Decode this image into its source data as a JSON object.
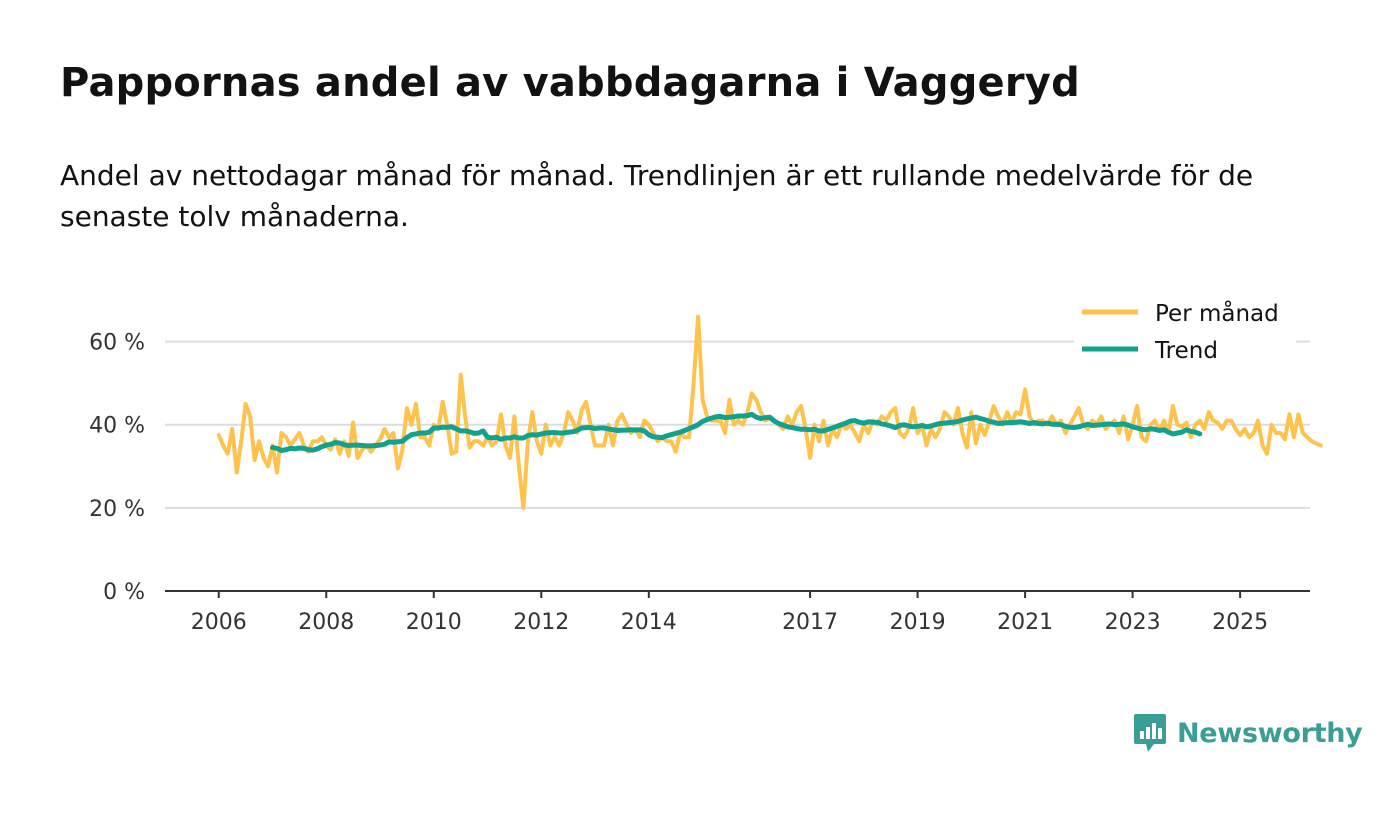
{
  "title": "Pappornas andel av vabbdagarna i Vaggeryd",
  "subtitle": "Andel av nettodagar månad för månad. Trendlinjen är ett rullande medelvärde för de senaste tolv månaderna.",
  "brand": {
    "name": "Newsworthy",
    "icon": "newsworthy-logo-icon"
  },
  "colors": {
    "monthly": "#ffc34d",
    "trend": "#12a08f",
    "grid": "#dddddd",
    "axis": "#333333",
    "brand": "#3a9e97"
  },
  "chart_data": {
    "type": "line",
    "title": "Pappornas andel av vabbdagarna i Vaggeryd",
    "xlabel": "",
    "ylabel": "",
    "ylim": [
      0,
      70
    ],
    "xlim": [
      2005.0,
      2026.3
    ],
    "y_ticks": [
      0,
      20,
      40,
      60
    ],
    "y_tick_labels": [
      "0 %",
      "20 %",
      "40 %",
      "60 %"
    ],
    "x_ticks": [
      2006,
      2008,
      2010,
      2012,
      2014,
      2017,
      2019,
      2021,
      2023,
      2025
    ],
    "x_tick_labels": [
      "2006",
      "2008",
      "2010",
      "2012",
      "2014",
      "2017",
      "2019",
      "2021",
      "2023",
      "2025"
    ],
    "legend_position": "top-right",
    "x_start": 2006.0,
    "x_step": 0.0833333,
    "series": [
      {
        "name": "Per månad",
        "color": "#ffc34d",
        "values": [
          37.5,
          35,
          33,
          39,
          28.5,
          36,
          45,
          42,
          31.5,
          36,
          32,
          30,
          35,
          28.5,
          38,
          37,
          35,
          36.5,
          38,
          35,
          33.5,
          36,
          36,
          37,
          35,
          34,
          36.5,
          33,
          36,
          32.5,
          40.5,
          32,
          34,
          35,
          33.5,
          35,
          36.5,
          39,
          37,
          38,
          29.5,
          34,
          44,
          40,
          45,
          37,
          37,
          35,
          40,
          39,
          45.5,
          40,
          33,
          33.5,
          52,
          42,
          34.5,
          36,
          36,
          35,
          37,
          35,
          36,
          42.5,
          35,
          32,
          42,
          30,
          20,
          36,
          43,
          36,
          33,
          40,
          35,
          37,
          35,
          38,
          43,
          41,
          38,
          43.5,
          45.5,
          40,
          35,
          35,
          35,
          40,
          35,
          41,
          42.5,
          40,
          38,
          39,
          37,
          41,
          40,
          38,
          36,
          37,
          36,
          36,
          33.5,
          38,
          37,
          37,
          50,
          66,
          46,
          42,
          41,
          41,
          41,
          38,
          46,
          40,
          41,
          40,
          43,
          47.5,
          46,
          43,
          41,
          41.5,
          41,
          40,
          39,
          42,
          40,
          43,
          44.5,
          39,
          32,
          40,
          36,
          41,
          35,
          39,
          37,
          40,
          39,
          40,
          38,
          36,
          40,
          38,
          41,
          40,
          42,
          41,
          43,
          44,
          38,
          37,
          39,
          44,
          38,
          40,
          35,
          39,
          37,
          39,
          43,
          42,
          40,
          44,
          38,
          34.5,
          43,
          35.5,
          40,
          37.5,
          41,
          44.5,
          42,
          40,
          43,
          40.5,
          43,
          42.5,
          48.5,
          42,
          40,
          41,
          41,
          40,
          42,
          40,
          41,
          38,
          40,
          42,
          44,
          40,
          39,
          41,
          40,
          42,
          39,
          40,
          41,
          38,
          42,
          36.5,
          40,
          44.5,
          37,
          36,
          40,
          41,
          38.5,
          41,
          38,
          44.5,
          40,
          39.5,
          40.5,
          37,
          40,
          41,
          39,
          43,
          41,
          40.5,
          39,
          41,
          41,
          39,
          37.5,
          39,
          37,
          38,
          41,
          35,
          33,
          40,
          38,
          38,
          36.5,
          42.5,
          37,
          42.5,
          38,
          37,
          36,
          35.5,
          35
        ]
      },
      {
        "name": "Trend",
        "color": "#12a08f",
        "start_index": 12,
        "values": [
          34.5,
          34.3,
          33.8,
          34.0,
          34.3,
          34.2,
          34.4,
          34.3,
          34.0,
          33.9,
          34.2,
          34.7,
          35.1,
          35.3,
          35.7,
          35.6,
          35.2,
          35.0,
          35.1,
          35.1,
          35.0,
          34.9,
          34.9,
          35.0,
          35.1,
          35.3,
          35.9,
          35.8,
          35.9,
          36.0,
          36.9,
          37.6,
          37.8,
          38.0,
          38.0,
          38.2,
          39.2,
          39.2,
          39.4,
          39.4,
          39.5,
          39.0,
          38.5,
          38.5,
          38.3,
          37.9,
          38.0,
          38.5,
          37.0,
          36.8,
          37.0,
          36.5,
          36.8,
          36.8,
          37.1,
          36.8,
          36.8,
          37.4,
          37.6,
          37.5,
          37.8,
          38.0,
          38.1,
          38.1,
          38.0,
          38.0,
          38.2,
          38.3,
          38.6,
          39.2,
          39.3,
          39.3,
          39.1,
          39.2,
          39.2,
          39.0,
          38.8,
          38.6,
          38.7,
          38.7,
          38.8,
          38.7,
          38.8,
          38.5,
          37.6,
          37.1,
          37.0,
          36.9,
          37.3,
          37.6,
          37.9,
          38.2,
          38.6,
          39.1,
          39.5,
          40.0,
          40.8,
          41.2,
          41.6,
          41.9,
          42.0,
          41.7,
          41.8,
          41.9,
          42.1,
          42.1,
          42.2,
          42.5,
          41.8,
          41.5,
          41.7,
          41.8,
          40.9,
          40.3,
          39.9,
          39.5,
          39.3,
          39.1,
          38.9,
          38.9,
          38.8,
          38.9,
          38.5,
          38.5,
          38.9,
          39.2,
          39.6,
          40.0,
          40.4,
          40.9,
          41.0,
          40.6,
          40.4,
          40.7,
          40.6,
          40.6,
          40.2,
          40.0,
          39.7,
          39.3,
          39.8,
          40.0,
          39.7,
          39.5,
          39.6,
          39.8,
          39.5,
          39.7,
          40.0,
          40.3,
          40.4,
          40.5,
          40.6,
          40.8,
          41.1,
          41.4,
          41.6,
          41.8,
          41.5,
          41.2,
          40.8,
          40.6,
          40.3,
          40.4,
          40.5,
          40.5,
          40.6,
          40.7,
          40.5,
          40.3,
          40.5,
          40.3,
          40.2,
          40.4,
          40.1,
          40.1,
          40.0,
          39.6,
          39.4,
          39.3,
          39.5,
          39.8,
          40.1,
          39.8,
          39.9,
          40.0,
          40.1,
          40.2,
          40.0,
          40.1,
          40.2,
          39.9,
          39.5,
          39.2,
          38.9,
          38.8,
          39.0,
          38.9,
          38.6,
          38.8,
          38.2,
          37.8,
          38.0,
          38.2,
          38.8,
          38.4,
          38.2,
          37.8
        ]
      }
    ]
  }
}
